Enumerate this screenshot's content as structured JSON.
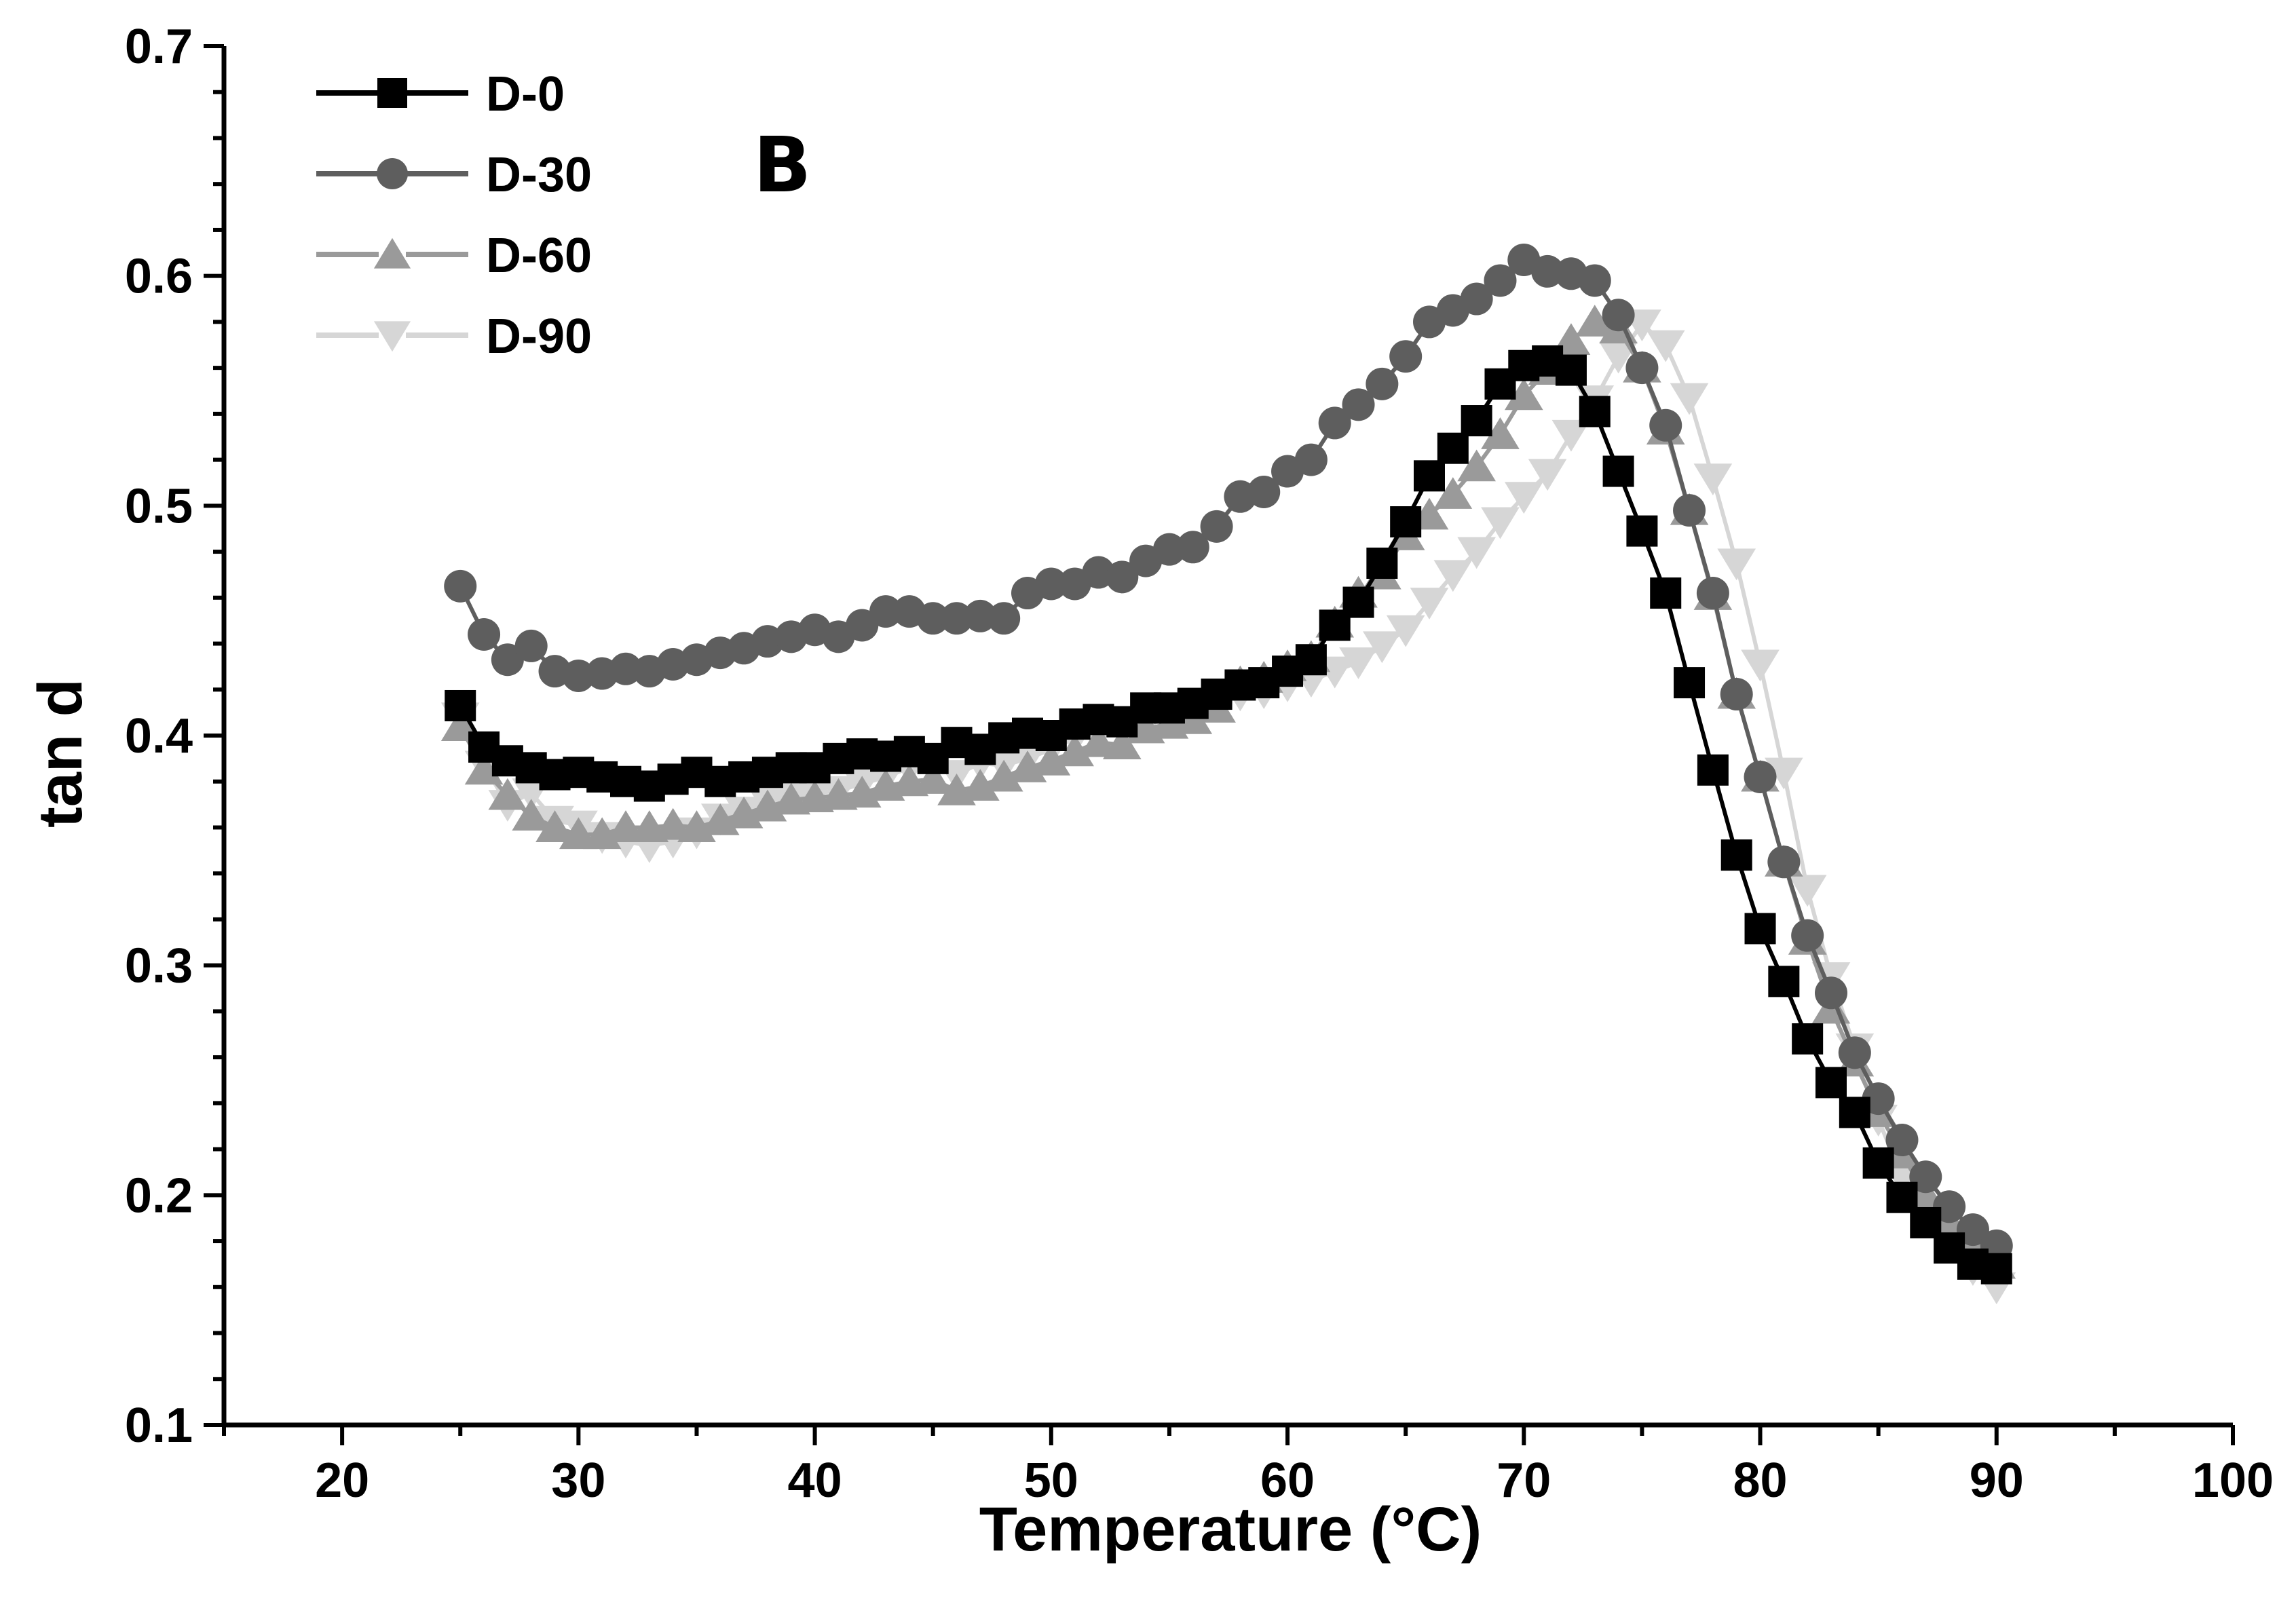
{
  "chart_data": {
    "type": "line",
    "panel_label": "B",
    "xlabel": "Temperature (°C)",
    "ylabel": "tan d",
    "xlim": [
      15,
      100
    ],
    "ylim": [
      0.1,
      0.7
    ],
    "xticks": [
      20,
      30,
      40,
      50,
      60,
      70,
      80,
      90,
      100
    ],
    "yticks": [
      0.1,
      0.2,
      0.3,
      0.4,
      0.5,
      0.6,
      0.7
    ],
    "xtick_labels": [
      "20",
      "30",
      "40",
      "50",
      "60",
      "70",
      "80",
      "90",
      "100"
    ],
    "ytick_labels": [
      "0.1",
      "0.2",
      "0.3",
      "0.4",
      "0.5",
      "0.6",
      "0.7"
    ],
    "legend_position": "top-left",
    "series": [
      {
        "name": "D-0",
        "marker": "square",
        "color": "#000000",
        "x": [
          25,
          26,
          27,
          28,
          29,
          30,
          31,
          32,
          33,
          34,
          35,
          36,
          37,
          38,
          39,
          40,
          41,
          42,
          43,
          44,
          45,
          46,
          47,
          48,
          49,
          50,
          51,
          52,
          53,
          54,
          55,
          56,
          57,
          58,
          59,
          60,
          61,
          62,
          63,
          64,
          65,
          66,
          67,
          68,
          69,
          70,
          71,
          72,
          73,
          74,
          75,
          76,
          77,
          78,
          79,
          80,
          81,
          82,
          83,
          84,
          85,
          86,
          87,
          88,
          89,
          90
        ],
        "y": [
          0.413,
          0.395,
          0.389,
          0.386,
          0.383,
          0.384,
          0.382,
          0.38,
          0.378,
          0.381,
          0.384,
          0.38,
          0.382,
          0.384,
          0.386,
          0.386,
          0.39,
          0.392,
          0.391,
          0.393,
          0.39,
          0.397,
          0.394,
          0.399,
          0.401,
          0.4,
          0.405,
          0.407,
          0.406,
          0.412,
          0.412,
          0.414,
          0.418,
          0.422,
          0.423,
          0.428,
          0.433,
          0.448,
          0.458,
          0.475,
          0.493,
          0.513,
          0.525,
          0.537,
          0.553,
          0.561,
          0.563,
          0.559,
          0.541,
          0.515,
          0.489,
          0.462,
          0.423,
          0.385,
          0.348,
          0.316,
          0.293,
          0.268,
          0.249,
          0.236,
          0.214,
          0.199,
          0.188,
          0.177,
          0.17,
          0.168
        ]
      },
      {
        "name": "D-30",
        "marker": "circle",
        "color": "#5e5e5e",
        "x": [
          25,
          26,
          27,
          28,
          29,
          30,
          31,
          32,
          33,
          34,
          35,
          36,
          37,
          38,
          39,
          40,
          41,
          42,
          43,
          44,
          45,
          46,
          47,
          48,
          49,
          50,
          51,
          52,
          53,
          54,
          55,
          56,
          57,
          58,
          59,
          60,
          61,
          62,
          63,
          64,
          65,
          66,
          67,
          68,
          69,
          70,
          71,
          72,
          73,
          74,
          75,
          76,
          77,
          78,
          79,
          80,
          81,
          82,
          83,
          84,
          85,
          86,
          87,
          88,
          89,
          90
        ],
        "y": [
          0.465,
          0.444,
          0.433,
          0.439,
          0.428,
          0.426,
          0.427,
          0.429,
          0.428,
          0.431,
          0.433,
          0.436,
          0.438,
          0.441,
          0.443,
          0.446,
          0.443,
          0.448,
          0.454,
          0.454,
          0.451,
          0.451,
          0.452,
          0.451,
          0.462,
          0.466,
          0.466,
          0.471,
          0.469,
          0.476,
          0.481,
          0.482,
          0.491,
          0.504,
          0.506,
          0.515,
          0.52,
          0.536,
          0.544,
          0.553,
          0.565,
          0.58,
          0.585,
          0.59,
          0.598,
          0.607,
          0.602,
          0.601,
          0.598,
          0.583,
          0.56,
          0.535,
          0.498,
          0.462,
          0.418,
          0.382,
          0.345,
          0.313,
          0.288,
          0.262,
          0.242,
          0.224,
          0.208,
          0.195,
          0.185,
          0.178
        ]
      },
      {
        "name": "D-60",
        "marker": "triangle-up",
        "color": "#9a9a9a",
        "x": [
          25,
          26,
          27,
          28,
          29,
          30,
          31,
          32,
          33,
          34,
          35,
          36,
          37,
          38,
          39,
          40,
          41,
          42,
          43,
          44,
          45,
          46,
          47,
          48,
          49,
          50,
          51,
          52,
          53,
          54,
          55,
          56,
          57,
          58,
          59,
          60,
          61,
          62,
          63,
          64,
          65,
          66,
          67,
          68,
          69,
          70,
          71,
          72,
          73,
          74,
          75,
          76,
          77,
          78,
          79,
          80,
          81,
          82,
          83,
          84,
          85,
          86,
          87,
          88,
          89,
          90
        ],
        "y": [
          0.404,
          0.385,
          0.374,
          0.365,
          0.36,
          0.357,
          0.357,
          0.36,
          0.36,
          0.361,
          0.36,
          0.363,
          0.366,
          0.369,
          0.372,
          0.373,
          0.374,
          0.375,
          0.378,
          0.38,
          0.381,
          0.376,
          0.378,
          0.382,
          0.386,
          0.389,
          0.393,
          0.397,
          0.396,
          0.403,
          0.405,
          0.407,
          0.412,
          0.423,
          0.425,
          0.43,
          0.434,
          0.449,
          0.462,
          0.47,
          0.487,
          0.496,
          0.505,
          0.517,
          0.531,
          0.548,
          0.559,
          0.572,
          0.58,
          0.577,
          0.56,
          0.533,
          0.498,
          0.461,
          0.418,
          0.382,
          0.345,
          0.311,
          0.281,
          0.258,
          0.236,
          0.218,
          0.2,
          0.188,
          0.178,
          0.17
        ]
      },
      {
        "name": "D-90",
        "marker": "triangle-down",
        "color": "#d6d6d6",
        "x": [
          25,
          26,
          27,
          28,
          29,
          30,
          31,
          32,
          33,
          34,
          35,
          36,
          37,
          38,
          39,
          40,
          41,
          42,
          43,
          44,
          45,
          46,
          47,
          48,
          49,
          50,
          51,
          52,
          53,
          54,
          55,
          56,
          57,
          58,
          59,
          60,
          61,
          62,
          63,
          64,
          65,
          66,
          67,
          68,
          69,
          70,
          71,
          72,
          73,
          74,
          75,
          76,
          77,
          78,
          79,
          80,
          81,
          82,
          83,
          84,
          85,
          86,
          87,
          88,
          89,
          90
        ],
        "y": [
          0.408,
          0.387,
          0.37,
          0.375,
          0.363,
          0.361,
          0.356,
          0.354,
          0.352,
          0.354,
          0.358,
          0.364,
          0.367,
          0.371,
          0.373,
          0.375,
          0.376,
          0.379,
          0.382,
          0.386,
          0.387,
          0.383,
          0.388,
          0.387,
          0.39,
          0.394,
          0.399,
          0.401,
          0.403,
          0.405,
          0.408,
          0.409,
          0.414,
          0.418,
          0.419,
          0.422,
          0.424,
          0.428,
          0.432,
          0.439,
          0.446,
          0.458,
          0.47,
          0.48,
          0.493,
          0.504,
          0.514,
          0.531,
          0.546,
          0.565,
          0.579,
          0.57,
          0.547,
          0.512,
          0.475,
          0.431,
          0.384,
          0.333,
          0.295,
          0.264,
          0.233,
          0.208,
          0.19,
          0.18,
          0.168,
          0.16
        ]
      }
    ]
  }
}
